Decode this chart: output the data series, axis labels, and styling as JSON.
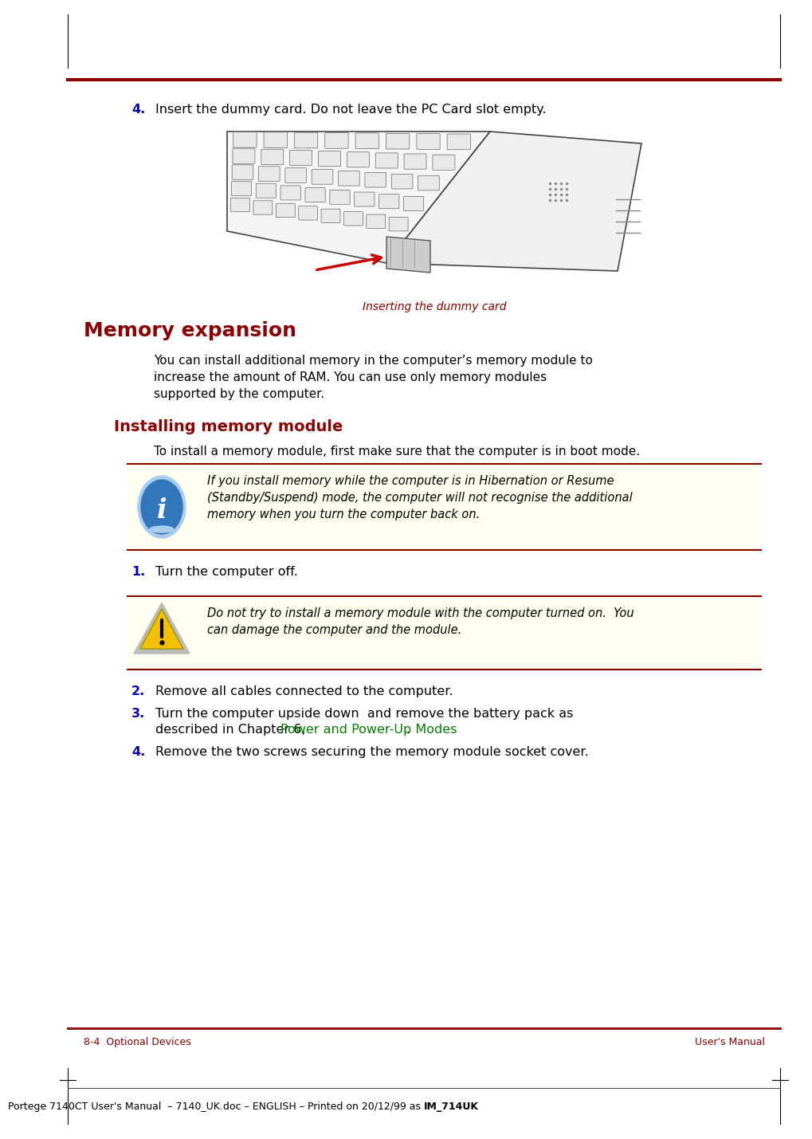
{
  "bg_color": "#ffffff",
  "red_line_color": "#8b0000",
  "step4_num": "4.",
  "step4_text": "Insert the dummy card. Do not leave the PC Card slot empty.",
  "caption_text": "Inserting the dummy card",
  "caption_color": "#8b0000",
  "section_title": "Memory expansion",
  "section_title_color": "#8b0000",
  "section_title_size": 18,
  "body_text1": "You can install additional memory in the computer’s memory module to\nincrease the amount of RAM. You can use only memory modules\nsupported by the computer.",
  "subsection_title": "Installing memory module",
  "subsection_title_color": "#8b0000",
  "subsection_title_size": 14,
  "install_intro": "To install a memory module, first make sure that the computer is in boot mode.",
  "note_bg": "#fffff0",
  "note_border": "#8b0000",
  "note_text": "If you install memory while the computer is in Hibernation or Resume\n(Standby/Suspend) mode, the computer will not recognise the additional\nmemory when you turn the computer back on.",
  "step1_num": "1.",
  "step1_text": "Turn the computer off.",
  "warning_bg": "#fffff0",
  "warning_border": "#8b0000",
  "warning_text": "Do not try to install a memory module with the computer turned on.  You\ncan damage the computer and the module.",
  "step2_num": "2.",
  "step2_text": "Remove all cables connected to the computer.",
  "step3_num": "3.",
  "step3_line1": "Turn the computer upside down  and remove the battery pack as",
  "step3_line2_pre": "described in Chapter 6, ",
  "step3_link": "Power and Power-Up Modes",
  "step3_link_color": "#008000",
  "step3_end": ".",
  "step4b_num": "4.",
  "step4b_text": "Remove the two screws securing the memory module socket cover.",
  "footer_left": "8-4  Optional Devices",
  "footer_right": "User's Manual",
  "footer_color": "#8b0000",
  "footer_center_pre": "Portege 7140CT User's Manual  – 7140_UK.doc – ENGLISH – Printed on 20/12/99 as ",
  "footer_center_bold": "IM_714UK",
  "footer_fontsize": 9
}
